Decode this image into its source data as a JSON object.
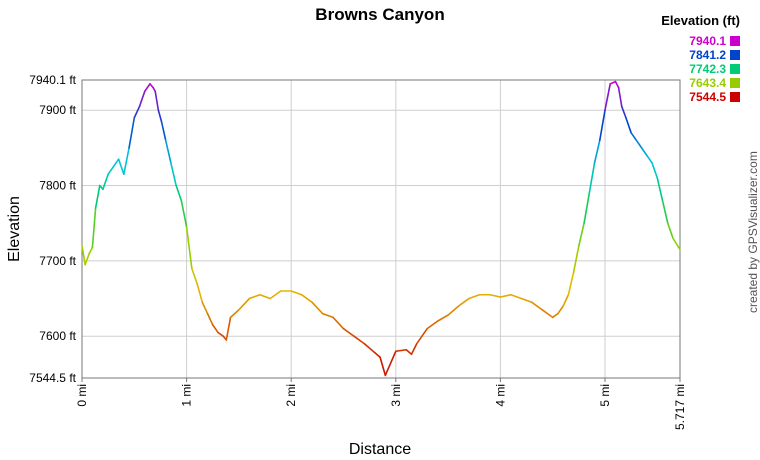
{
  "chart_data": {
    "type": "line",
    "title": "Browns Canyon",
    "xlabel": "Distance",
    "ylabel": "Elevation",
    "x_unit": "mi",
    "y_unit": "ft",
    "xlim": [
      0,
      5.717
    ],
    "ylim": [
      7544.5,
      7940.1
    ],
    "x_ticks": [
      {
        "value": 0,
        "label": "0 mi"
      },
      {
        "value": 1,
        "label": "1 mi"
      },
      {
        "value": 2,
        "label": "2 mi"
      },
      {
        "value": 3,
        "label": "3 mi"
      },
      {
        "value": 4,
        "label": "4 mi"
      },
      {
        "value": 5,
        "label": "5 mi"
      },
      {
        "value": 5.717,
        "label": "5.717 mi"
      }
    ],
    "y_ticks": [
      {
        "value": 7544.5,
        "label": "7544.5 ft"
      },
      {
        "value": 7600,
        "label": "7600 ft"
      },
      {
        "value": 7700,
        "label": "7700 ft"
      },
      {
        "value": 7800,
        "label": "7800 ft"
      },
      {
        "value": 7900,
        "label": "7900 ft"
      },
      {
        "value": 7940.1,
        "label": "7940.1 ft"
      }
    ],
    "grid": true,
    "legend": {
      "title": "Elevation (ft)",
      "placement": "top-right",
      "entries": [
        {
          "label": "7940.1",
          "color": "#cc00cc"
        },
        {
          "label": "7841.2",
          "color": "#0044cc"
        },
        {
          "label": "7742.3",
          "color": "#00cc77"
        },
        {
          "label": "7643.4",
          "color": "#99cc00"
        },
        {
          "label": "7544.5",
          "color": "#cc0000"
        }
      ]
    },
    "series": [
      {
        "x": [
          0,
          0.03,
          0.07,
          0.1,
          0.13,
          0.17,
          0.2,
          0.25,
          0.3,
          0.35,
          0.4,
          0.45,
          0.5,
          0.55,
          0.6,
          0.65,
          0.68,
          0.7,
          0.73,
          0.76,
          0.8,
          0.85,
          0.9,
          0.95,
          1.0,
          1.05,
          1.1,
          1.15,
          1.2,
          1.25,
          1.3,
          1.35,
          1.38,
          1.42,
          1.5,
          1.6,
          1.7,
          1.8,
          1.9,
          2.0,
          2.1,
          2.2,
          2.3,
          2.4,
          2.5,
          2.6,
          2.7,
          2.8,
          2.85,
          2.9,
          3.0,
          3.1,
          3.15,
          3.2,
          3.3,
          3.4,
          3.5,
          3.6,
          3.7,
          3.8,
          3.9,
          4.0,
          4.1,
          4.2,
          4.3,
          4.4,
          4.5,
          4.55,
          4.6,
          4.65,
          4.7,
          4.75,
          4.8,
          4.85,
          4.9,
          4.95,
          5.0,
          5.05,
          5.1,
          5.13,
          5.16,
          5.2,
          5.25,
          5.3,
          5.35,
          5.4,
          5.45,
          5.5,
          5.55,
          5.6,
          5.65,
          5.717
        ],
        "y": [
          7720,
          7695,
          7710,
          7718,
          7770,
          7800,
          7795,
          7815,
          7825,
          7835,
          7815,
          7850,
          7890,
          7905,
          7925,
          7935,
          7930,
          7925,
          7900,
          7885,
          7860,
          7830,
          7800,
          7780,
          7745,
          7690,
          7670,
          7645,
          7630,
          7615,
          7605,
          7600,
          7595,
          7625,
          7635,
          7650,
          7655,
          7650,
          7660,
          7660,
          7655,
          7645,
          7630,
          7625,
          7610,
          7600,
          7590,
          7578,
          7572,
          7548,
          7580,
          7582,
          7576,
          7590,
          7610,
          7620,
          7628,
          7640,
          7650,
          7655,
          7655,
          7652,
          7655,
          7650,
          7645,
          7635,
          7625,
          7630,
          7640,
          7655,
          7685,
          7720,
          7750,
          7790,
          7830,
          7860,
          7900,
          7935,
          7938,
          7930,
          7905,
          7890,
          7870,
          7860,
          7850,
          7840,
          7830,
          7810,
          7780,
          7750,
          7730,
          7715
        ]
      }
    ]
  },
  "credit": "created by GPSVisualizer.com"
}
